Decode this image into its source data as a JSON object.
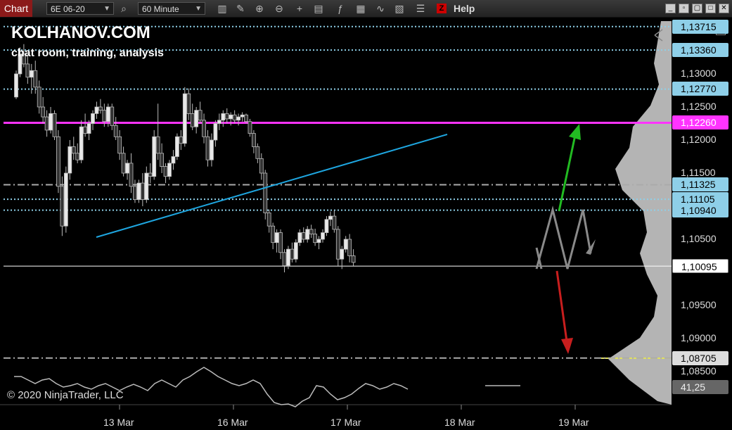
{
  "toolbar": {
    "tab_label": "Chart",
    "instrument": "6E 06-20",
    "interval": "60 Minute",
    "help_label": "Help",
    "z_label": "Z",
    "f_label": "F",
    "icons": [
      "search-icon",
      "bars-icon",
      "draw-icon",
      "zoom-in-icon",
      "zoom-out-icon",
      "crosshair-icon",
      "properties-icon",
      "indicators-icon",
      "strategies-icon",
      "templates-icon",
      "data-box-icon",
      "z-icon"
    ]
  },
  "overlay": {
    "brand": "KOLHANOV.COM",
    "tagline": "chat room, training, analysis",
    "copyright": "© 2020 NinjaTrader, LLC"
  },
  "axis": {
    "ticks": [
      "1,13000",
      "1,12500",
      "1,12000",
      "1,11500",
      "1,10500",
      "1,09500",
      "1,09000",
      "1,08500"
    ],
    "price_tags": [
      {
        "label": "1,13715",
        "color": "#8ecfe8"
      },
      {
        "label": "1,13360",
        "color": "#8ecfe8"
      },
      {
        "label": "1,12770",
        "color": "#8ecfe8"
      },
      {
        "label": "1,12260",
        "color": "#ff33ff"
      },
      {
        "label": "1,11325",
        "color": "#8ecfe8"
      },
      {
        "label": "1,11105",
        "color": "#8ecfe8"
      },
      {
        "label": "1,10940",
        "color": "#8ecfe8"
      },
      {
        "label": "1,10095",
        "color": "#ffffff"
      },
      {
        "label": "1,08705",
        "color": "#dddddd"
      },
      {
        "label": "41,25",
        "color": "#666666"
      }
    ],
    "x_labels": [
      "13 Mar",
      "16 Mar",
      "17 Mar",
      "18 Mar",
      "19 Mar"
    ]
  },
  "chart_data": {
    "type": "candlestick",
    "instrument": "6E 06-20",
    "interval": "60 Minute",
    "levels": [
      {
        "price": 1.13715,
        "style": "dotted",
        "color": "#8ecfe8"
      },
      {
        "price": 1.1336,
        "style": "dotted",
        "color": "#8ecfe8"
      },
      {
        "price": 1.1277,
        "style": "dotted",
        "color": "#8ecfe8"
      },
      {
        "price": 1.1226,
        "style": "solid",
        "color": "#ff33ff"
      },
      {
        "price": 1.11325,
        "style": "dashdot",
        "color": "#aaaaaa"
      },
      {
        "price": 1.11105,
        "style": "dotted",
        "color": "#8ecfe8"
      },
      {
        "price": 1.1094,
        "style": "dotted",
        "color": "#8ecfe8"
      },
      {
        "price": 1.10095,
        "style": "solid",
        "color": "#ffffff"
      },
      {
        "price": 1.08705,
        "style": "dashdot",
        "color": "#aaaaaa"
      }
    ],
    "candles": [
      [
        1.1265,
        1.1305,
        1.1262,
        1.13
      ],
      [
        1.13,
        1.134,
        1.1295,
        1.133
      ],
      [
        1.133,
        1.1345,
        1.131,
        1.1315
      ],
      [
        1.1315,
        1.133,
        1.1285,
        1.1295
      ],
      [
        1.1295,
        1.1315,
        1.127,
        1.1305
      ],
      [
        1.1305,
        1.132,
        1.127,
        1.128
      ],
      [
        1.128,
        1.129,
        1.124,
        1.125
      ],
      [
        1.125,
        1.1265,
        1.1225,
        1.1235
      ],
      [
        1.1235,
        1.1245,
        1.1205,
        1.1215
      ],
      [
        1.1215,
        1.125,
        1.121,
        1.124
      ],
      [
        1.124,
        1.1245,
        1.12,
        1.1205
      ],
      [
        1.1205,
        1.1215,
        1.112,
        1.113
      ],
      [
        1.113,
        1.1145,
        1.1055,
        1.107
      ],
      [
        1.107,
        1.116,
        1.106,
        1.115
      ],
      [
        1.115,
        1.12,
        1.114,
        1.119
      ],
      [
        1.119,
        1.1205,
        1.117,
        1.118
      ],
      [
        1.118,
        1.1195,
        1.1165,
        1.117
      ],
      [
        1.117,
        1.123,
        1.1165,
        1.122
      ],
      [
        1.122,
        1.124,
        1.1205,
        1.121
      ],
      [
        1.121,
        1.123,
        1.12,
        1.1225
      ],
      [
        1.1225,
        1.1245,
        1.1215,
        1.124
      ],
      [
        1.124,
        1.1258,
        1.1232,
        1.125
      ],
      [
        1.125,
        1.1262,
        1.124,
        1.1245
      ],
      [
        1.1245,
        1.1255,
        1.122,
        1.1228
      ],
      [
        1.1228,
        1.1255,
        1.122,
        1.125
      ],
      [
        1.125,
        1.1255,
        1.1215,
        1.1222
      ],
      [
        1.1222,
        1.1235,
        1.12,
        1.1205
      ],
      [
        1.1205,
        1.1215,
        1.117,
        1.118
      ],
      [
        1.118,
        1.119,
        1.1145,
        1.115
      ],
      [
        1.115,
        1.117,
        1.114,
        1.1165
      ],
      [
        1.1165,
        1.118,
        1.112,
        1.113
      ],
      [
        1.113,
        1.114,
        1.1105,
        1.111
      ],
      [
        1.111,
        1.114,
        1.1105,
        1.1135
      ],
      [
        1.1135,
        1.115,
        1.11,
        1.111
      ],
      [
        1.111,
        1.116,
        1.1105,
        1.115
      ],
      [
        1.115,
        1.1165,
        1.1135,
        1.1145
      ],
      [
        1.1145,
        1.1215,
        1.114,
        1.1205
      ],
      [
        1.1205,
        1.1255,
        1.117,
        1.118
      ],
      [
        1.118,
        1.1195,
        1.115,
        1.116
      ],
      [
        1.116,
        1.1165,
        1.1135,
        1.1145
      ],
      [
        1.1145,
        1.117,
        1.114,
        1.1165
      ],
      [
        1.1165,
        1.1185,
        1.1155,
        1.1175
      ],
      [
        1.1175,
        1.121,
        1.117,
        1.1205
      ],
      [
        1.1205,
        1.1215,
        1.1185,
        1.1195
      ],
      [
        1.1195,
        1.128,
        1.119,
        1.127
      ],
      [
        1.127,
        1.1278,
        1.123,
        1.124
      ],
      [
        1.124,
        1.1255,
        1.1215,
        1.122
      ],
      [
        1.122,
        1.125,
        1.121,
        1.1245
      ],
      [
        1.1245,
        1.1258,
        1.1225,
        1.123
      ],
      [
        1.123,
        1.124,
        1.1195,
        1.1205
      ],
      [
        1.1205,
        1.1215,
        1.116,
        1.117
      ],
      [
        1.117,
        1.121,
        1.116,
        1.12
      ],
      [
        1.12,
        1.123,
        1.119,
        1.1225
      ],
      [
        1.1225,
        1.124,
        1.1215,
        1.123
      ],
      [
        1.123,
        1.1245,
        1.122,
        1.124
      ],
      [
        1.124,
        1.1248,
        1.1225,
        1.1232
      ],
      [
        1.1232,
        1.1242,
        1.1222,
        1.1238
      ],
      [
        1.1238,
        1.1245,
        1.1225,
        1.123
      ],
      [
        1.123,
        1.124,
        1.1222,
        1.1235
      ],
      [
        1.1235,
        1.1242,
        1.1228,
        1.1238
      ],
      [
        1.1238,
        1.124,
        1.1225,
        1.1228
      ],
      [
        1.1228,
        1.1232,
        1.1205,
        1.121
      ],
      [
        1.121,
        1.1215,
        1.118,
        1.119
      ],
      [
        1.119,
        1.1195,
        1.1165,
        1.1172
      ],
      [
        1.1172,
        1.118,
        1.114,
        1.115
      ],
      [
        1.115,
        1.1155,
        1.108,
        1.109
      ],
      [
        1.109,
        1.1095,
        1.106,
        1.107
      ],
      [
        1.107,
        1.1075,
        1.1035,
        1.1045
      ],
      [
        1.1045,
        1.1065,
        1.103,
        1.106
      ],
      [
        1.106,
        1.1065,
        1.102,
        1.103
      ],
      [
        1.103,
        1.1035,
        1.1,
        1.101
      ],
      [
        1.101,
        1.104,
        1.1005,
        1.1035
      ],
      [
        1.1035,
        1.1045,
        1.1015,
        1.102
      ],
      [
        1.102,
        1.105,
        1.1015,
        1.1045
      ],
      [
        1.1045,
        1.1065,
        1.104,
        1.106
      ],
      [
        1.106,
        1.1068,
        1.1045,
        1.105
      ],
      [
        1.105,
        1.107,
        1.1045,
        1.1065
      ],
      [
        1.1065,
        1.1072,
        1.1052,
        1.1058
      ],
      [
        1.1058,
        1.1066,
        1.104,
        1.1045
      ],
      [
        1.1045,
        1.1055,
        1.1035,
        1.105
      ],
      [
        1.105,
        1.1065,
        1.1045,
        1.106
      ],
      [
        1.106,
        1.1085,
        1.1055,
        1.108
      ],
      [
        1.108,
        1.1092,
        1.107,
        1.1085
      ],
      [
        1.1085,
        1.1094,
        1.106,
        1.1065
      ],
      [
        1.1065,
        1.107,
        1.101,
        1.102
      ],
      [
        1.102,
        1.104,
        1.1005,
        1.1035
      ],
      [
        1.1035,
        1.1055,
        1.103,
        1.105
      ],
      [
        1.105,
        1.1058,
        1.1015,
        1.1025
      ],
      [
        1.1025,
        1.1035,
        1.101,
        1.1015
      ]
    ],
    "trendline": {
      "color": "#1ea6e0",
      "from": [
        1.1055
      ],
      "to": [
        1.1205
      ]
    },
    "projection": {
      "gray_path": [
        1.101,
        1.1094,
        1.101,
        1.1094,
        1.105
      ],
      "green_arrow_target": 1.1226,
      "red_arrow_target": 1.0872
    },
    "oscillator_last": "41,25"
  }
}
